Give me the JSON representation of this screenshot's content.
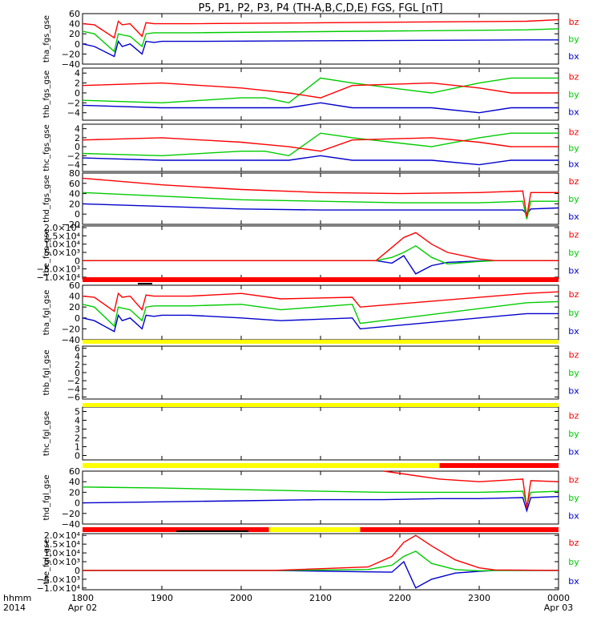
{
  "title": "P5, P1, P2, P3, P4 (TH-A,B,C,D,E) FGS, FGL [nT]",
  "colors": {
    "bz": "#ff0000",
    "by": "#00cc00",
    "bx": "#0000cc",
    "red_bar": "#ff0000",
    "yellow_bar": "#ffff00",
    "black": "#000000"
  },
  "legend": [
    "bz",
    "by",
    "bx"
  ],
  "x_axis": {
    "ticks": [
      {
        "label": "1800",
        "sub": "Apr 02",
        "x": 0
      },
      {
        "label": "1900",
        "sub": "",
        "x": 1
      },
      {
        "label": "2000",
        "sub": "",
        "x": 2
      },
      {
        "label": "2100",
        "sub": "",
        "x": 3
      },
      {
        "label": "2200",
        "sub": "",
        "x": 4
      },
      {
        "label": "2300",
        "sub": "",
        "x": 5
      },
      {
        "label": "0000",
        "sub": "Apr 03",
        "x": 6
      }
    ],
    "left_label_1": "hhmm",
    "left_label_2": "2014"
  },
  "panels": [
    {
      "ylabel": "tha_fgs_gse",
      "ticks": [
        "60",
        "40",
        "20",
        "0",
        "−20",
        "−40"
      ],
      "ylim": [
        -40,
        60
      ]
    },
    {
      "ylabel": "thb_fgs_gse",
      "ticks": [
        "4",
        "2",
        "0",
        "−2",
        "−4"
      ],
      "ylim": [
        -5.5,
        5
      ]
    },
    {
      "ylabel": "thc_fgs_gse",
      "ticks": [
        "4",
        "2",
        "0",
        "−2",
        "−4"
      ],
      "ylim": [
        -5.5,
        5
      ]
    },
    {
      "ylabel": "thd_fgs_gse",
      "ticks": [
        "80",
        "60",
        "40",
        "20",
        "0",
        "−20"
      ],
      "ylim": [
        -20,
        80
      ]
    },
    {
      "ylabel": "the_fgs_gse",
      "ticks": [
        "2.0×10⁴",
        "1.5×10⁴",
        "1.0×10⁴",
        "5.0×10³",
        "0",
        "−5.0×10³",
        "−1.0×10⁴"
      ],
      "ylim": [
        -11000,
        21000
      ]
    },
    {
      "ylabel": "tha_fgl_gse",
      "ticks": [
        "60",
        "40",
        "20",
        "0",
        "−20",
        "−40"
      ],
      "ylim": [
        -40,
        60
      ]
    },
    {
      "ylabel": "thb_fgl_gse",
      "ticks": [
        "6",
        "4",
        "2",
        "0",
        "−2",
        "−4",
        "−6"
      ],
      "ylim": [
        -6.5,
        6.5
      ]
    },
    {
      "ylabel": "thc_fgl_gse",
      "ticks": [
        "5",
        "4",
        "3",
        "2",
        "1",
        "0"
      ],
      "ylim": [
        -0.5,
        5.5
      ]
    },
    {
      "ylabel": "thd_fgl_gse",
      "ticks": [
        "60",
        "40",
        "20",
        "0",
        "−20",
        "−40"
      ],
      "ylim": [
        -40,
        60
      ]
    },
    {
      "ylabel": "the_fgl_gse",
      "ticks": [
        "2.0×10⁴",
        "1.5×10⁴",
        "1.0×10⁴",
        "5.0×10³",
        "0",
        "−5.0×10³",
        "−1.0×10⁴"
      ],
      "ylim": [
        -11000,
        21000
      ]
    }
  ],
  "chart_data": {
    "type": "line",
    "title": "P5, P1, P2, P3, P4 (TH-A,B,C,D,E) FGS, FGL [nT]",
    "x_range": [
      "1800 Apr 02",
      "0000 Apr 03"
    ],
    "series_names": [
      "bz",
      "by",
      "bx"
    ],
    "panels": [
      {
        "name": "tha_fgs_gse",
        "x": [
          0,
          0.15,
          0.4,
          0.45,
          0.5,
          0.6,
          0.75,
          0.8,
          0.9,
          1.0,
          1.35,
          5.6,
          6.0
        ],
        "bz": [
          40,
          38,
          12,
          45,
          38,
          40,
          15,
          42,
          40,
          40,
          40,
          45,
          48
        ],
        "by": [
          25,
          20,
          -15,
          20,
          18,
          15,
          -5,
          20,
          22,
          22,
          22,
          28,
          30
        ],
        "bx": [
          0,
          -5,
          -25,
          5,
          -5,
          0,
          -20,
          5,
          3,
          5,
          5,
          8,
          8
        ]
      },
      {
        "name": "thb_fgs_gse",
        "x": [
          0,
          1,
          2,
          2.3,
          2.6,
          3,
          3.4,
          4.4,
          5,
          5.4,
          5.8,
          6
        ],
        "bz": [
          1.5,
          2,
          1,
          0.5,
          0,
          -1,
          1.5,
          2,
          1,
          0,
          0,
          0
        ],
        "by": [
          -1.5,
          -2,
          -1,
          -1,
          -2,
          3,
          2,
          0,
          2,
          3,
          3,
          3
        ],
        "bx": [
          -2.5,
          -3,
          -3,
          -3,
          -3,
          -2,
          -3,
          -3,
          -4,
          -3,
          -3,
          -3
        ]
      },
      {
        "name": "thc_fgs_gse",
        "x": [
          0,
          1,
          2,
          2.3,
          2.6,
          3,
          3.4,
          4.4,
          5,
          5.4,
          5.8,
          6
        ],
        "bz": [
          1.5,
          2,
          1,
          0.5,
          0,
          -1,
          1.5,
          2,
          1,
          0,
          0,
          0
        ],
        "by": [
          -1.5,
          -2,
          -1,
          -1,
          -2,
          3,
          2,
          0,
          2,
          3,
          3,
          3
        ],
        "bx": [
          -2.5,
          -3,
          -3,
          -3,
          -3,
          -2,
          -3,
          -3,
          -4,
          -3,
          -3,
          -3
        ]
      },
      {
        "name": "thd_fgs_gse",
        "x": [
          0,
          1,
          2,
          3,
          4,
          5,
          5.55,
          5.6,
          5.65,
          6
        ],
        "bz": [
          70,
          57,
          48,
          42,
          40,
          42,
          45,
          -5,
          42,
          42
        ],
        "by": [
          42,
          35,
          28,
          25,
          22,
          22,
          25,
          -10,
          25,
          25
        ],
        "bx": [
          20,
          15,
          10,
          8,
          8,
          8,
          8,
          0,
          10,
          12
        ]
      },
      {
        "name": "the_fgs_gse",
        "x": [
          0,
          2.1,
          3.7,
          3.9,
          4.05,
          4.2,
          4.4,
          4.6,
          5.0,
          5.2,
          6
        ],
        "bz": [
          0,
          0,
          0,
          8000,
          14000,
          17000,
          10000,
          5000,
          1000,
          0,
          0
        ],
        "by": [
          0,
          0,
          0,
          2000,
          5000,
          9000,
          2000,
          -2000,
          -500,
          0,
          0
        ],
        "bx": [
          0,
          0,
          0,
          -1500,
          3000,
          -8000,
          -3000,
          -1000,
          -200,
          0,
          0
        ]
      },
      {
        "name": "tha_fgl_gse",
        "x": [
          0,
          0.15,
          0.4,
          0.45,
          0.5,
          0.6,
          0.75,
          0.8,
          0.9,
          1.0,
          1.35,
          2.0,
          2.5,
          3.4,
          3.5,
          5.6,
          6.0
        ],
        "bz": [
          40,
          38,
          12,
          45,
          38,
          40,
          15,
          42,
          40,
          40,
          40,
          45,
          35,
          38,
          20,
          45,
          48
        ],
        "by": [
          25,
          20,
          -15,
          20,
          18,
          15,
          -5,
          20,
          22,
          22,
          22,
          25,
          15,
          25,
          -10,
          28,
          30
        ],
        "bx": [
          0,
          -5,
          -25,
          5,
          -5,
          0,
          -20,
          5,
          3,
          5,
          5,
          0,
          -5,
          0,
          -20,
          8,
          8
        ]
      },
      {
        "name": "thb_fgl_gse",
        "x": [],
        "bz": [],
        "by": [],
        "bx": []
      },
      {
        "name": "thc_fgl_gse",
        "x": [],
        "bz": [],
        "by": [],
        "bx": []
      },
      {
        "name": "thd_fgl_gse",
        "x": [
          0,
          1,
          2,
          3,
          3.8,
          4.5,
          5,
          5.55,
          5.6,
          5.65,
          6
        ],
        "bz": [
          null,
          null,
          null,
          null,
          60,
          45,
          40,
          45,
          -10,
          42,
          40
        ],
        "by": [
          30,
          28,
          25,
          22,
          20,
          20,
          20,
          22,
          -5,
          20,
          22
        ],
        "bx": [
          0,
          2,
          4,
          6,
          6,
          8,
          8,
          10,
          -15,
          10,
          12
        ]
      },
      {
        "name": "the_fgl_gse",
        "x": [
          0,
          2.4,
          3.6,
          3.9,
          4.05,
          4.2,
          4.4,
          4.7,
          5.0,
          5.2,
          6
        ],
        "bz": [
          0,
          0,
          2000,
          8000,
          16000,
          20000,
          14000,
          6000,
          1500,
          300,
          0
        ],
        "by": [
          0,
          0,
          500,
          3000,
          8000,
          11000,
          4000,
          500,
          -200,
          0,
          0
        ],
        "bx": [
          0,
          0,
          -800,
          -1000,
          5000,
          -10000,
          -5000,
          -1500,
          -500,
          0,
          0
        ]
      }
    ]
  }
}
